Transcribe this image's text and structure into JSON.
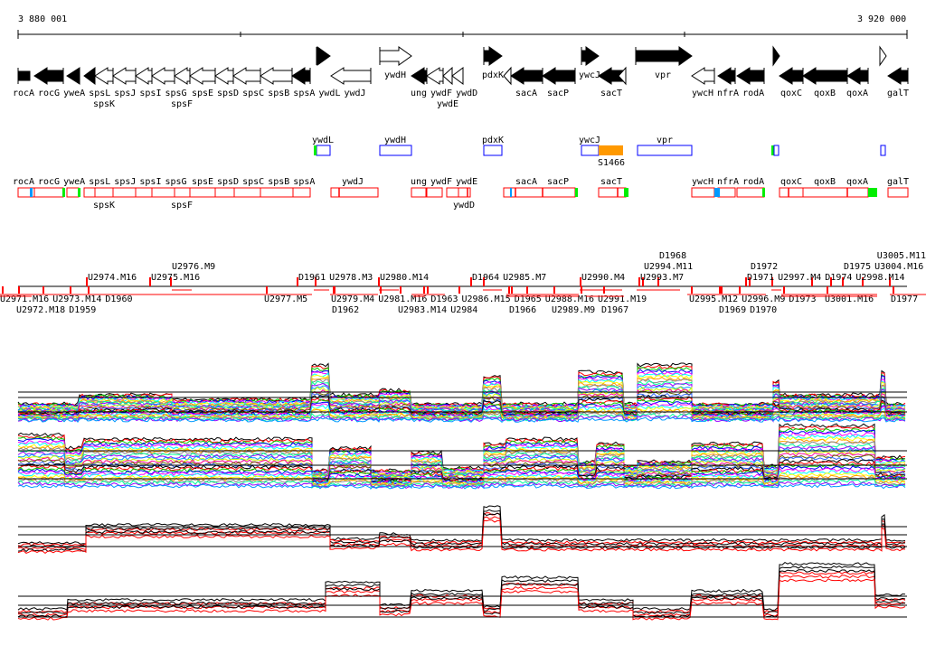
{
  "axis": {
    "start_label": "3 880 001",
    "end_label": "3 920 000"
  },
  "genes": [
    "rocA",
    "rocG",
    "yweA",
    "spsL",
    "spsK",
    "spsJ",
    "spsI",
    "spsG",
    "spsF",
    "spsE",
    "spsD",
    "spsC",
    "spsB",
    "spsA",
    "ywdL",
    "ywdJ",
    "ywdH",
    "ung",
    "ywdF",
    "ywdE",
    "ywdD",
    "pdxK",
    "sacA",
    "sacP",
    "ywcJ",
    "sacT",
    "vpr",
    "ywcH",
    "nfrA",
    "rodA",
    "qoxC",
    "qoxB",
    "qoxA",
    "galT"
  ],
  "upper_features": [
    "ywdL",
    "ywdH",
    "pdxK",
    "ywcJ",
    "vpr"
  ],
  "s_feature": "S1466",
  "cds_track": [
    "rocA",
    "rocG",
    "yweA",
    "spsL",
    "spsK",
    "spsJ",
    "spsI",
    "spsG",
    "spsF",
    "spsE",
    "spsD",
    "spsC",
    "spsB",
    "spsA",
    "ywdJ",
    "ung",
    "ywdF",
    "ywdE",
    "ywdD",
    "sacA",
    "sacP",
    "sacT",
    "ywcH",
    "nfrA",
    "rodA",
    "qoxC",
    "qoxB",
    "qoxA",
    "galT"
  ],
  "probes_above": [
    "U2974.M16",
    "U2975.M16",
    "U2976.M9",
    "D1961",
    "U2978.M3",
    "U2980.M14",
    "D1964",
    "U2985.M7",
    "U2990.M4",
    "U2993.M7",
    "U2994.M11",
    "D1968",
    "D1971",
    "D1972",
    "U2997.M4",
    "D1974",
    "U2998.M14",
    "D1975",
    "U3004.M16",
    "U3005.M11"
  ],
  "probes_below": [
    "U2971.M16",
    "U2972.M18",
    "U2973.M14",
    "D1959",
    "D1960",
    "U2977.M5",
    "D1962",
    "U2979.M4",
    "U2981.M16",
    "U2983.M14",
    "U2984",
    "D1963",
    "U2986.M15",
    "D1965",
    "D1966",
    "U2988.M16",
    "U2989.M9",
    "U2991.M19",
    "D1967",
    "U2995.M12",
    "U2996.M9",
    "D1969",
    "D1970",
    "D1973",
    "U3001.M16",
    "D1977"
  ],
  "colors": {
    "accent_red": "#ff0000",
    "upper_box": "#0000ff",
    "orange": "#ff9900",
    "green": "#00ee00",
    "blue": "#0099ff"
  }
}
